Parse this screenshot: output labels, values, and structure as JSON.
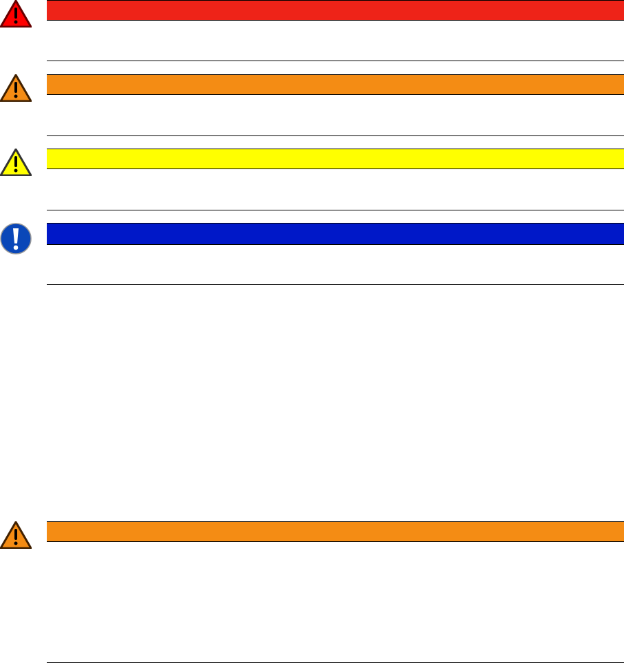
{
  "notices": [
    {
      "level": "danger",
      "icon": "warning-triangle-icon",
      "color": "#EE2318"
    },
    {
      "level": "warning",
      "icon": "warning-triangle-icon",
      "color": "#F48C14"
    },
    {
      "level": "caution",
      "icon": "warning-triangle-icon",
      "color": "#FFFF00"
    },
    {
      "level": "notice",
      "icon": "mandatory-exclamation-icon",
      "color": "#0018C8"
    },
    {
      "level": "warning",
      "icon": "warning-triangle-icon",
      "color": "#F48C14"
    }
  ]
}
